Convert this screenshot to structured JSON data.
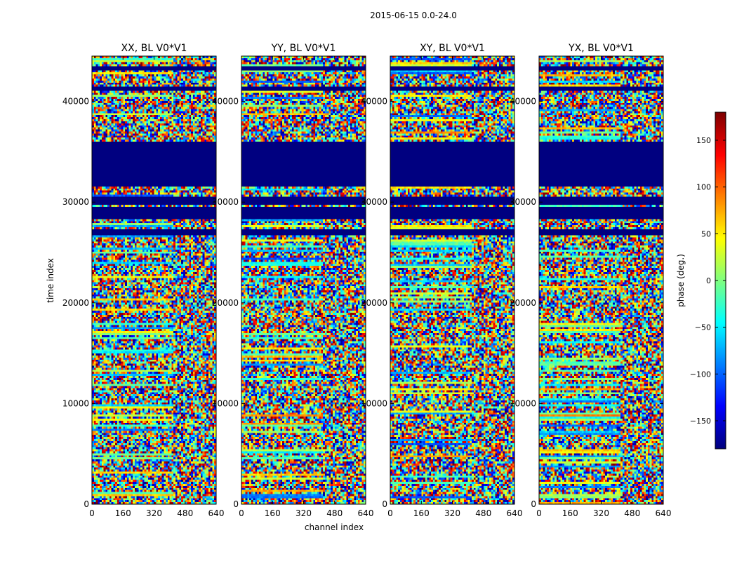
{
  "figure": {
    "suptitle": "2015-06-15 0.0-24.0",
    "xlabel": "channel index",
    "ylabel": "time index",
    "colorbar_label": "phase (deg.)"
  },
  "chart_data": {
    "type": "heatmap",
    "colormap": "jet",
    "panels": [
      {
        "title": "XX, BL V0*V1"
      },
      {
        "title": "YY, BL V0*V1"
      },
      {
        "title": "XY, BL V0*V1"
      },
      {
        "title": "YX, BL V0*V1"
      }
    ],
    "xlim": [
      0,
      640
    ],
    "ylim": [
      0,
      44500
    ],
    "x_ticks": [
      0,
      160,
      320,
      480,
      640
    ],
    "y_ticks": [
      0,
      10000,
      20000,
      30000,
      40000
    ],
    "colorbar": {
      "vmin": -180,
      "vmax": 180,
      "ticks": [
        -150,
        -100,
        -50,
        0,
        50,
        100,
        150
      ],
      "tick_labels": [
        "−150",
        "−100",
        "−50",
        "0",
        "50",
        "100",
        "150"
      ]
    },
    "flagged_time_ranges": [
      [
        28400,
        29600
      ],
      [
        29800,
        30500
      ],
      [
        31500,
        36000
      ],
      [
        41000,
        41500
      ],
      [
        26800,
        27300
      ],
      [
        43000,
        43400
      ]
    ],
    "flagged_value": -180
  }
}
